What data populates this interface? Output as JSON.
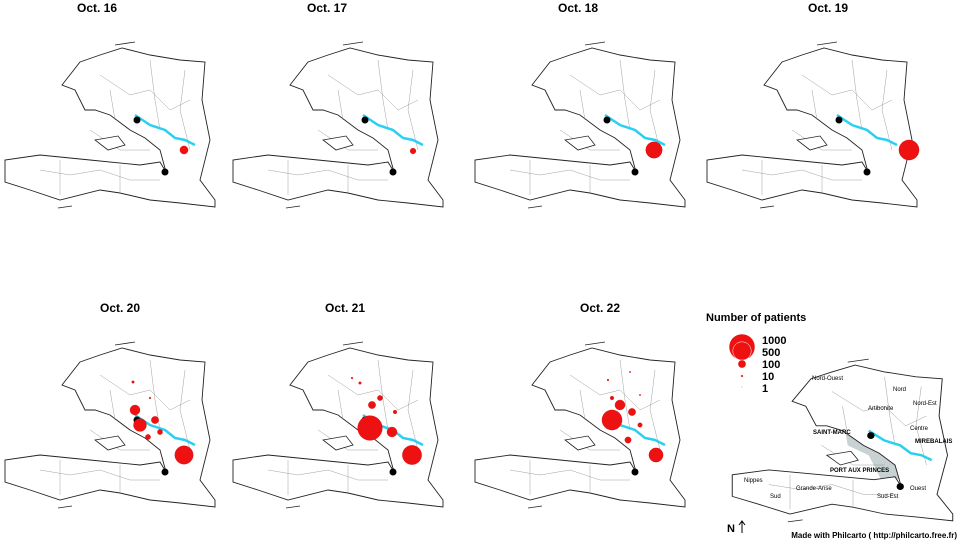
{
  "panels": [
    {
      "title": "Oct. 16",
      "patients": [
        100
      ]
    },
    {
      "title": "Oct. 17",
      "patients": [
        50
      ]
    },
    {
      "title": "Oct. 18",
      "patients": [
        400
      ]
    },
    {
      "title": "Oct. 19",
      "patients": [
        600
      ]
    },
    {
      "title": "Oct. 20",
      "patients": [
        500,
        250,
        150,
        80,
        40,
        40,
        10,
        5
      ]
    },
    {
      "title": "Oct. 21",
      "patients": [
        550,
        900,
        150,
        80,
        40,
        20,
        10,
        5
      ]
    },
    {
      "title": "Oct. 22",
      "patients": [
        300,
        600,
        150,
        80,
        60,
        30,
        20,
        5,
        3,
        3
      ]
    }
  ],
  "legend": {
    "title": "Number of patients",
    "values": [
      1000,
      500,
      100,
      10,
      1
    ]
  },
  "inset": {
    "labels": [
      "Nord-Ouest",
      "Nord",
      "Nord-Est",
      "Artibonite",
      "Centre",
      "SAINT-MARC",
      "MIREBALAIS",
      "PORT AUX PRINCES",
      "Nippes",
      "Grande-Anse",
      "Sud",
      "Sud-Est",
      "Ouest"
    ]
  },
  "north": "N",
  "credit": "Made with Philcarto ( http://philcarto.free.fr)"
}
